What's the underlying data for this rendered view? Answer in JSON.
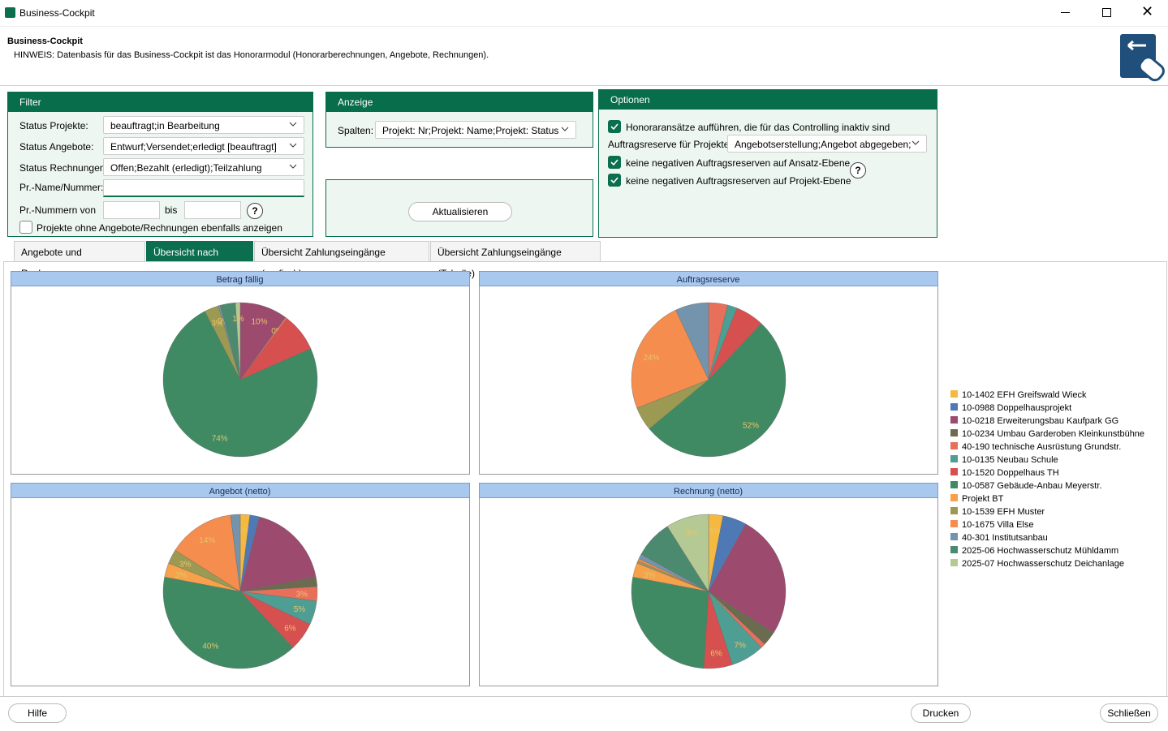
{
  "window": {
    "title": "Business-Cockpit"
  },
  "header": {
    "title": "Business-Cockpit",
    "note": "HINWEIS: Datenbasis für das Business-Cockpit ist das Honorarmodul (Honorarberechnungen, Angebote, Rechnungen)."
  },
  "filter": {
    "title": "Filter",
    "fields": [
      {
        "label": "Status Projekte:",
        "value": "beauftragt;in Bearbeitung"
      },
      {
        "label": "Status Angebote:",
        "value": "Entwurf;Versendet;erledigt [beauftragt]"
      },
      {
        "label": "Status Rechnungen:",
        "value": "Offen;Bezahlt (erledigt);Teilzahlung"
      }
    ],
    "name_label": "Pr.-Name/Nummer:",
    "range_label": "Pr.-Nummern von",
    "range_to": "bis",
    "checkbox": "Projekte ohne Angebote/Rechnungen ebenfalls anzeigen"
  },
  "anzeige": {
    "title": "Anzeige",
    "label": "Spalten:",
    "value": "Projekt: Nr;Projekt: Name;Projekt: Status",
    "button": "Aktualisieren"
  },
  "optionen": {
    "title": "Optionen",
    "check1": "Honoraransätze aufführen, die für das Controlling inaktiv sind",
    "reserve_label": "Auftragsreserve für Projekte",
    "reserve_value": "Angebotserstellung;Angebot abgegeben;",
    "check2": "keine negativen Auftragsreserven auf Ansatz-Ebene",
    "check3": "keine negativen Auftragsreserven auf Projekt-Ebene"
  },
  "tabs": [
    "Angebote und Rechnungen",
    "Übersicht nach Projekt",
    "Übersicht Zahlungseingänge (grafisch)",
    "Übersicht Zahlungseingänge (Tabelle)"
  ],
  "active_tab": 1,
  "legend": {
    "names": [
      "10-1402 EFH Greifswald Wieck",
      "10-0988 Doppelhausprojekt",
      "10-0218 Erweiterungsbau Kaufpark GG",
      "10-0234 Umbau Garderoben Kleinkunstbühne",
      "40-190 technische Ausrüstung Grundstr.",
      "10-0135 Neubau Schule",
      "10-1520 Doppelhaus TH",
      "10-0587 Gebäude-Anbau Meyerstr.",
      "Projekt BT",
      "10-1539 EFH Muster",
      "10-1675 Villa Else",
      "40-301 Institutsanbau",
      "2025-06 Hochwasserschutz Mühldamm",
      "2025-07 Hochwasserschutz Deichanlage"
    ],
    "colors": [
      "#f5b942",
      "#4e79b5",
      "#9c4a6e",
      "#6b6b50",
      "#e8705a",
      "#4e9e93",
      "#d65050",
      "#3f8a63",
      "#f7a14a",
      "#9c9a52",
      "#f58d4e",
      "#7494ad",
      "#4b8a6e",
      "#b5c994"
    ]
  },
  "chart_data": [
    {
      "type": "pie",
      "title": "Betrag fällig",
      "values": [
        0,
        0,
        10,
        0,
        0.4,
        0,
        8,
        74,
        0,
        3,
        0,
        0.4,
        3.2,
        1
      ],
      "value_labels": [
        null,
        null,
        "10%",
        null,
        "0%",
        null,
        null,
        "74%",
        null,
        "3%",
        null,
        "0%",
        null,
        "1%"
      ]
    },
    {
      "type": "pie",
      "title": "Auftragsreserve",
      "values": [
        0,
        0,
        0,
        0,
        4,
        2,
        6,
        52,
        0,
        5,
        24,
        7,
        0,
        0
      ],
      "value_labels": [
        null,
        null,
        null,
        null,
        null,
        null,
        null,
        "52%",
        null,
        null,
        "24%",
        null,
        null,
        null
      ]
    },
    {
      "type": "pie",
      "title": "Angebot (netto)",
      "values": [
        2,
        2,
        18,
        2,
        3,
        5,
        6,
        40,
        3,
        3,
        14,
        2,
        0,
        0
      ],
      "value_labels": [
        "2%",
        null,
        null,
        null,
        "3%",
        "5%",
        "6%",
        "40%",
        "3%",
        "3%",
        "14%",
        null,
        null,
        null
      ]
    },
    {
      "type": "pie",
      "title": "Rechnung (netto)",
      "values": [
        3,
        5,
        26,
        3,
        1,
        7,
        6,
        27,
        3,
        0.5,
        0.5,
        1,
        8,
        9
      ],
      "value_labels": [
        "3%",
        null,
        null,
        null,
        null,
        "7%",
        "6%",
        null,
        "3%",
        null,
        null,
        null,
        null,
        "9%"
      ]
    }
  ],
  "footer": {
    "help": "Hilfe",
    "print": "Drucken",
    "close": "Schließen"
  }
}
